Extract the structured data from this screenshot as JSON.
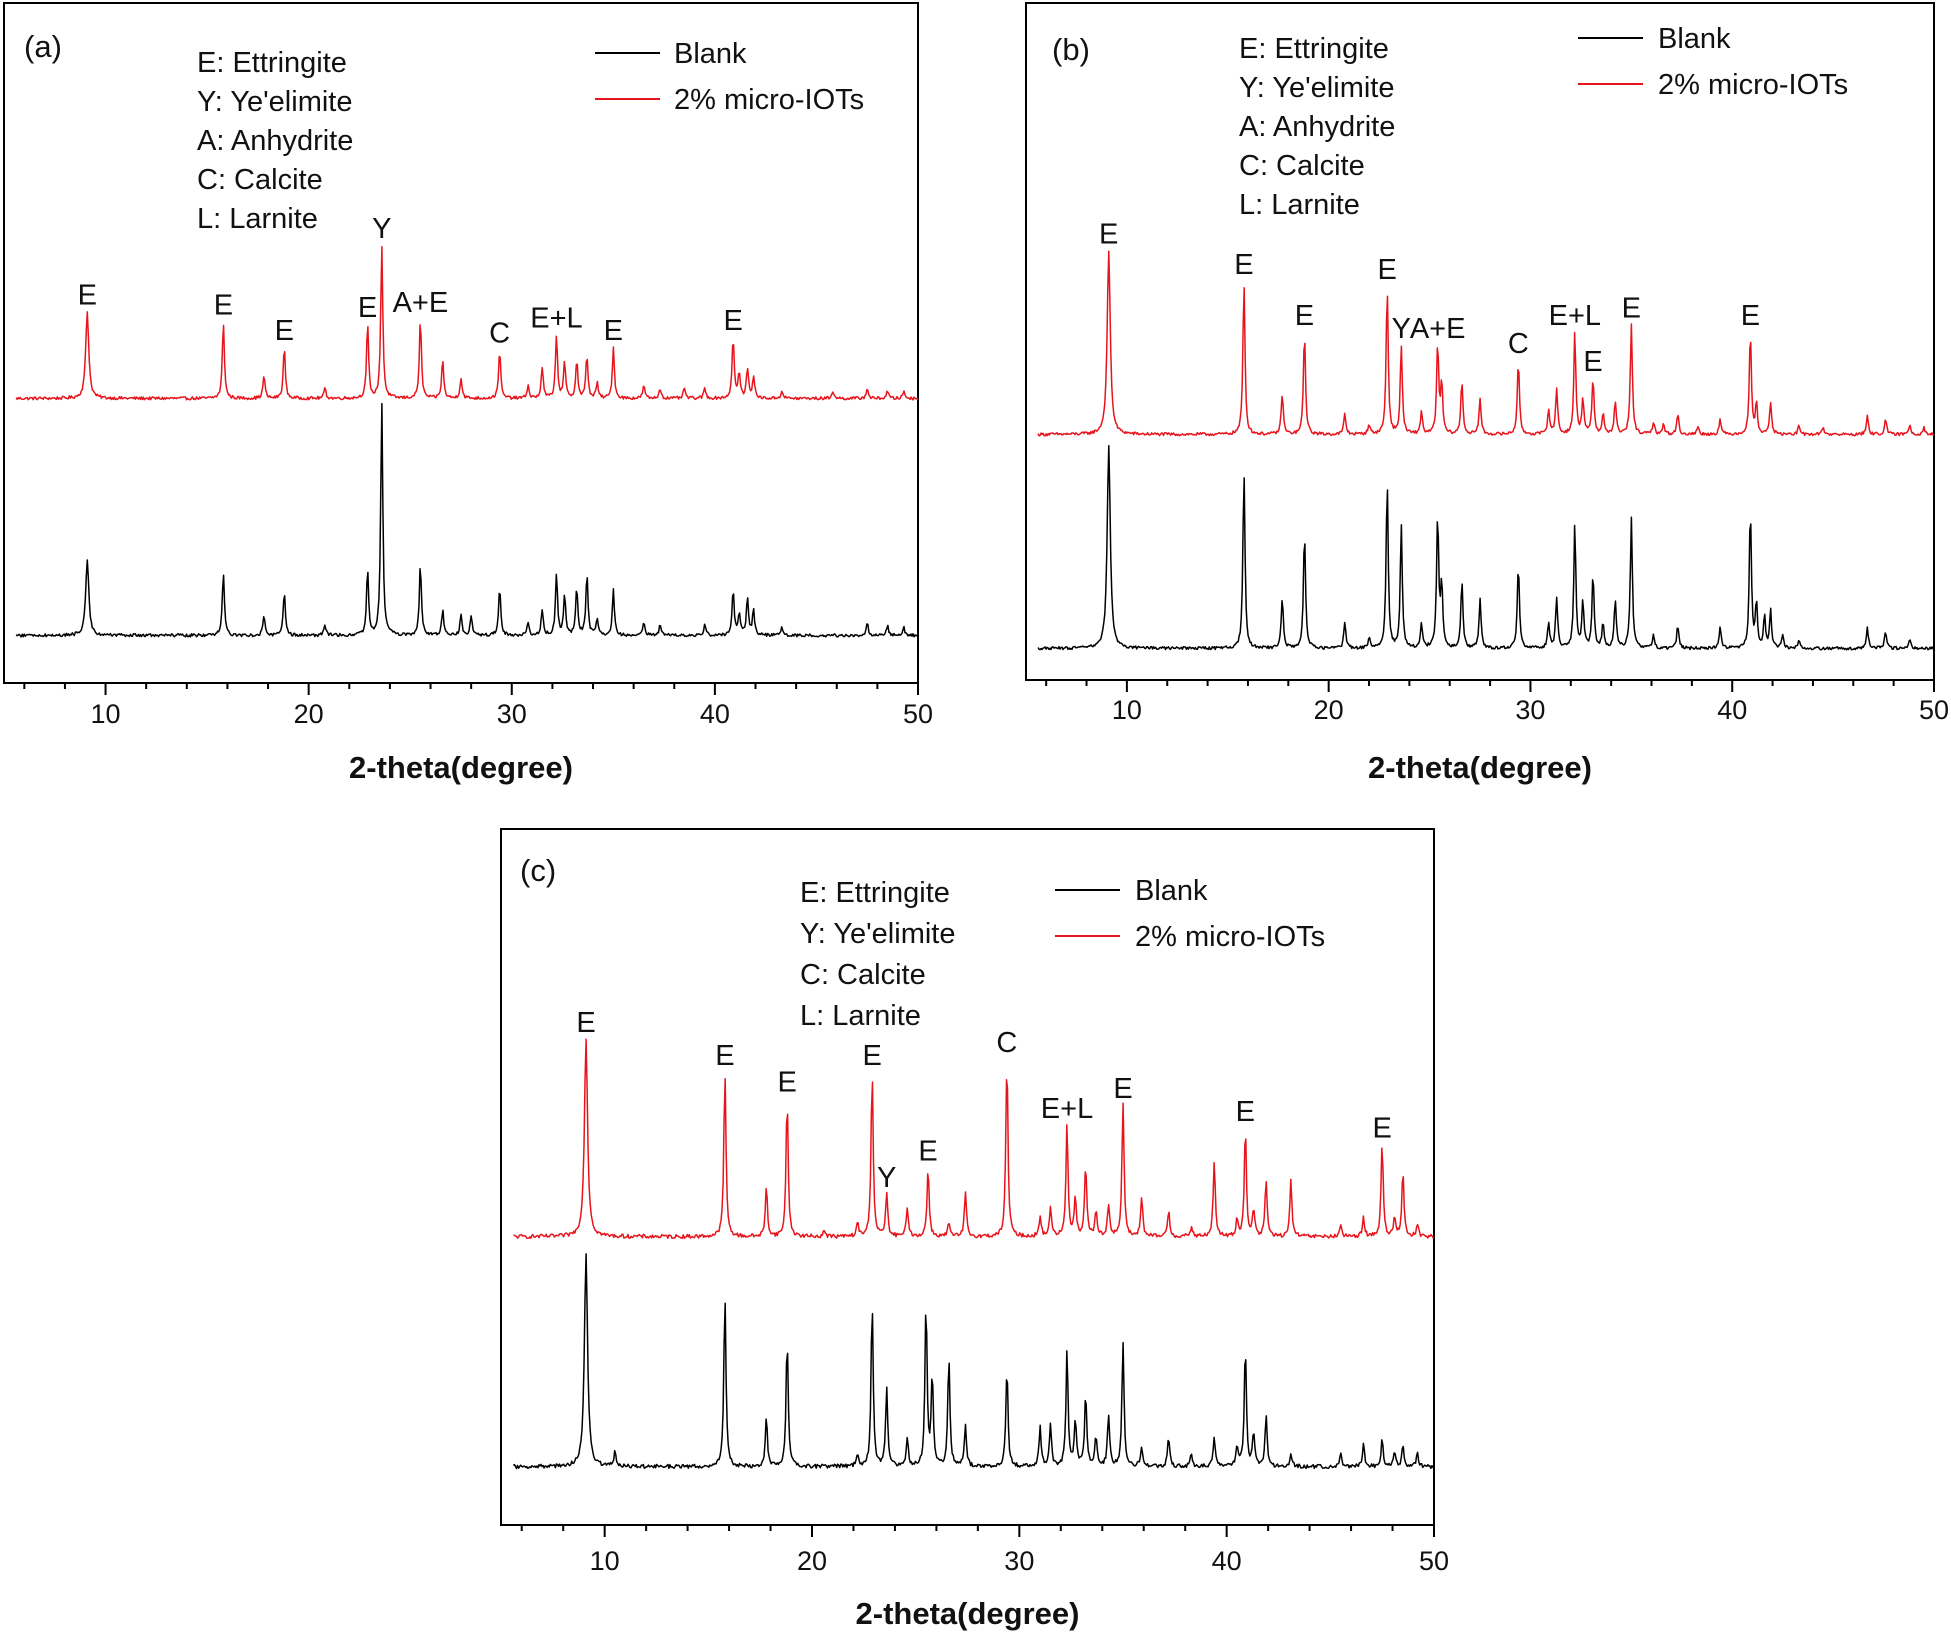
{
  "chart_data": [
    {
      "type": "line",
      "panel_label": "(a)",
      "xlabel": "2-theta(degree)",
      "xlim": [
        5,
        50
      ],
      "xticks": [
        "10",
        "20",
        "30",
        "40",
        "50"
      ],
      "phase_key": [
        "E: Ettringite",
        "Y: Ye'elimite",
        "A: Anhydrite",
        "C: Calcite",
        "L: Larnite"
      ],
      "legend": [
        {
          "name": "Blank",
          "color": "#000000"
        },
        {
          "name": "2% micro-IOTs",
          "color": "#e8141c"
        }
      ],
      "series": [
        {
          "name": "2% micro-IOTs",
          "color": "#e8141c",
          "peaks": [
            [
              9.1,
              0.34
            ],
            [
              15.8,
              0.3
            ],
            [
              17.8,
              0.09
            ],
            [
              18.8,
              0.2
            ],
            [
              20.8,
              0.04
            ],
            [
              22.9,
              0.29
            ],
            [
              23.6,
              0.6
            ],
            [
              25.5,
              0.31
            ],
            [
              26.6,
              0.15
            ],
            [
              27.5,
              0.08
            ],
            [
              29.4,
              0.19
            ],
            [
              30.8,
              0.05
            ],
            [
              31.5,
              0.12
            ],
            [
              32.2,
              0.25
            ],
            [
              32.6,
              0.14
            ],
            [
              33.2,
              0.15
            ],
            [
              33.7,
              0.17
            ],
            [
              34.2,
              0.06
            ],
            [
              35.0,
              0.2
            ],
            [
              36.5,
              0.05
            ],
            [
              37.3,
              0.04
            ],
            [
              38.5,
              0.04
            ],
            [
              39.5,
              0.04
            ],
            [
              40.9,
              0.24
            ],
            [
              41.2,
              0.1
            ],
            [
              41.6,
              0.12
            ],
            [
              41.9,
              0.09
            ],
            [
              43.3,
              0.03
            ],
            [
              45.8,
              0.03
            ],
            [
              47.5,
              0.04
            ],
            [
              48.5,
              0.03
            ],
            [
              49.3,
              0.03
            ]
          ]
        },
        {
          "name": "Blank",
          "color": "#000000",
          "peaks": [
            [
              9.1,
              0.3
            ],
            [
              15.8,
              0.25
            ],
            [
              17.8,
              0.08
            ],
            [
              18.8,
              0.17
            ],
            [
              20.8,
              0.04
            ],
            [
              22.9,
              0.26
            ],
            [
              23.6,
              0.92
            ],
            [
              25.5,
              0.28
            ],
            [
              26.6,
              0.1
            ],
            [
              27.5,
              0.08
            ],
            [
              28.0,
              0.08
            ],
            [
              29.4,
              0.19
            ],
            [
              30.8,
              0.05
            ],
            [
              31.5,
              0.1
            ],
            [
              32.2,
              0.24
            ],
            [
              32.6,
              0.16
            ],
            [
              33.2,
              0.19
            ],
            [
              33.7,
              0.24
            ],
            [
              34.2,
              0.07
            ],
            [
              35.0,
              0.18
            ],
            [
              36.5,
              0.05
            ],
            [
              37.3,
              0.04
            ],
            [
              39.5,
              0.04
            ],
            [
              40.9,
              0.18
            ],
            [
              41.2,
              0.09
            ],
            [
              41.6,
              0.15
            ],
            [
              41.9,
              0.1
            ],
            [
              43.3,
              0.03
            ],
            [
              47.5,
              0.05
            ],
            [
              48.5,
              0.04
            ],
            [
              49.3,
              0.03
            ]
          ]
        }
      ],
      "annotations": [
        {
          "label": "E",
          "x": 9.1,
          "y": 0.34
        },
        {
          "label": "E",
          "x": 15.8,
          "y": 0.3
        },
        {
          "label": "E",
          "x": 18.8,
          "y": 0.2
        },
        {
          "label": "E",
          "x": 22.9,
          "y": 0.29
        },
        {
          "label": "Y",
          "x": 23.6,
          "y": 0.6
        },
        {
          "label": "A+E",
          "x": 25.5,
          "y": 0.31
        },
        {
          "label": "C",
          "x": 29.4,
          "y": 0.19
        },
        {
          "label": "E+L",
          "x": 32.2,
          "y": 0.25
        },
        {
          "label": "E",
          "x": 35.0,
          "y": 0.2
        },
        {
          "label": "E",
          "x": 40.9,
          "y": 0.24
        }
      ]
    },
    {
      "type": "line",
      "panel_label": "(b)",
      "xlabel": "2-theta(degree)",
      "xlim": [
        5,
        50
      ],
      "xticks": [
        "10",
        "20",
        "30",
        "40",
        "50"
      ],
      "phase_key": [
        "E: Ettringite",
        "Y: Ye'elimite",
        "A: Anhydrite",
        "C: Calcite",
        "L: Larnite"
      ],
      "legend": [
        {
          "name": "Blank",
          "color": "#000000"
        },
        {
          "name": "2% micro-IOTs",
          "color": "#e8141c"
        }
      ],
      "series": [
        {
          "name": "2% micro-IOTs",
          "color": "#e8141c",
          "peaks": [
            [
              9.1,
              0.72
            ],
            [
              15.8,
              0.6
            ],
            [
              17.7,
              0.16
            ],
            [
              18.8,
              0.4
            ],
            [
              20.8,
              0.08
            ],
            [
              22.0,
              0.04
            ],
            [
              22.9,
              0.58
            ],
            [
              23.6,
              0.35
            ],
            [
              24.6,
              0.09
            ],
            [
              25.4,
              0.35
            ],
            [
              25.6,
              0.2
            ],
            [
              26.6,
              0.21
            ],
            [
              27.5,
              0.14
            ],
            [
              29.4,
              0.29
            ],
            [
              30.9,
              0.1
            ],
            [
              31.3,
              0.18
            ],
            [
              32.2,
              0.4
            ],
            [
              32.6,
              0.14
            ],
            [
              33.1,
              0.22
            ],
            [
              33.6,
              0.08
            ],
            [
              34.2,
              0.13
            ],
            [
              35.0,
              0.43
            ],
            [
              36.1,
              0.05
            ],
            [
              36.6,
              0.04
            ],
            [
              37.3,
              0.08
            ],
            [
              38.3,
              0.03
            ],
            [
              39.4,
              0.06
            ],
            [
              40.9,
              0.4
            ],
            [
              41.2,
              0.12
            ],
            [
              41.9,
              0.13
            ],
            [
              43.3,
              0.03
            ],
            [
              44.5,
              0.03
            ],
            [
              46.7,
              0.07
            ],
            [
              47.6,
              0.06
            ],
            [
              48.8,
              0.04
            ],
            [
              49.5,
              0.03
            ]
          ]
        },
        {
          "name": "Blank",
          "color": "#000000",
          "peaks": [
            [
              9.1,
              0.8
            ],
            [
              15.8,
              0.7
            ],
            [
              17.7,
              0.2
            ],
            [
              18.8,
              0.46
            ],
            [
              20.8,
              0.1
            ],
            [
              22.0,
              0.04
            ],
            [
              22.9,
              0.66
            ],
            [
              23.6,
              0.48
            ],
            [
              24.6,
              0.1
            ],
            [
              25.4,
              0.52
            ],
            [
              25.6,
              0.25
            ],
            [
              26.6,
              0.27
            ],
            [
              27.5,
              0.19
            ],
            [
              29.4,
              0.33
            ],
            [
              30.9,
              0.1
            ],
            [
              31.3,
              0.2
            ],
            [
              32.2,
              0.49
            ],
            [
              32.6,
              0.18
            ],
            [
              33.1,
              0.29
            ],
            [
              33.6,
              0.1
            ],
            [
              34.2,
              0.19
            ],
            [
              35.0,
              0.51
            ],
            [
              36.1,
              0.05
            ],
            [
              37.3,
              0.09
            ],
            [
              39.4,
              0.08
            ],
            [
              40.9,
              0.55
            ],
            [
              41.2,
              0.17
            ],
            [
              41.6,
              0.12
            ],
            [
              41.9,
              0.15
            ],
            [
              42.5,
              0.05
            ],
            [
              43.3,
              0.03
            ],
            [
              46.7,
              0.08
            ],
            [
              47.6,
              0.07
            ],
            [
              48.8,
              0.04
            ]
          ]
        }
      ],
      "annotations": [
        {
          "label": "E",
          "x": 9.1,
          "y": 0.72
        },
        {
          "label": "E",
          "x": 15.8,
          "y": 0.6
        },
        {
          "label": "E",
          "x": 18.8,
          "y": 0.4
        },
        {
          "label": "E",
          "x": 22.9,
          "y": 0.58
        },
        {
          "label": "Y",
          "x": 23.6,
          "y": 0.35
        },
        {
          "label": "A+E",
          "x": 25.4,
          "y": 0.35
        },
        {
          "label": "C",
          "x": 29.4,
          "y": 0.29
        },
        {
          "label": "E+L",
          "x": 32.2,
          "y": 0.4
        },
        {
          "label": "E",
          "x": 33.1,
          "y": 0.22
        },
        {
          "label": "E",
          "x": 35.0,
          "y": 0.43
        },
        {
          "label": "E",
          "x": 40.9,
          "y": 0.4
        }
      ]
    },
    {
      "type": "line",
      "panel_label": "(c)",
      "xlabel": "2-theta(degree)",
      "xlim": [
        5,
        50
      ],
      "xticks": [
        "10",
        "20",
        "30",
        "40",
        "50"
      ],
      "phase_key": [
        "E: Ettringite",
        "Y: Ye'elimite",
        "C: Calcite",
        "L: Larnite"
      ],
      "legend": [
        {
          "name": "Blank",
          "color": "#000000"
        },
        {
          "name": "2% micro-IOTs",
          "color": "#e8141c"
        }
      ],
      "series": [
        {
          "name": "2% micro-IOTs",
          "color": "#e8141c",
          "peaks": [
            [
              9.1,
              0.6
            ],
            [
              15.8,
              0.5
            ],
            [
              17.8,
              0.15
            ],
            [
              18.8,
              0.42
            ],
            [
              20.6,
              0.02
            ],
            [
              22.2,
              0.04
            ],
            [
              22.9,
              0.5
            ],
            [
              23.6,
              0.13
            ],
            [
              24.6,
              0.09
            ],
            [
              25.6,
              0.21
            ],
            [
              26.6,
              0.04
            ],
            [
              27.4,
              0.13
            ],
            [
              29.4,
              0.54
            ],
            [
              31.0,
              0.06
            ],
            [
              31.5,
              0.09
            ],
            [
              32.3,
              0.34
            ],
            [
              32.7,
              0.12
            ],
            [
              33.2,
              0.22
            ],
            [
              33.7,
              0.08
            ],
            [
              34.3,
              0.1
            ],
            [
              35.0,
              0.4
            ],
            [
              35.9,
              0.12
            ],
            [
              37.2,
              0.08
            ],
            [
              38.3,
              0.03
            ],
            [
              39.4,
              0.23
            ],
            [
              40.5,
              0.05
            ],
            [
              40.9,
              0.33
            ],
            [
              41.3,
              0.08
            ],
            [
              41.9,
              0.17
            ],
            [
              43.1,
              0.17
            ],
            [
              45.5,
              0.03
            ],
            [
              46.6,
              0.06
            ],
            [
              47.5,
              0.28
            ],
            [
              48.1,
              0.06
            ],
            [
              48.5,
              0.2
            ],
            [
              49.2,
              0.04
            ]
          ]
        },
        {
          "name": "Blank",
          "color": "#000000",
          "peaks": [
            [
              9.1,
              0.65
            ],
            [
              10.5,
              0.05
            ],
            [
              15.8,
              0.52
            ],
            [
              17.8,
              0.15
            ],
            [
              18.8,
              0.39
            ],
            [
              22.2,
              0.04
            ],
            [
              22.9,
              0.49
            ],
            [
              23.6,
              0.24
            ],
            [
              24.6,
              0.08
            ],
            [
              25.5,
              0.49
            ],
            [
              25.8,
              0.27
            ],
            [
              26.6,
              0.33
            ],
            [
              27.4,
              0.12
            ],
            [
              29.4,
              0.3
            ],
            [
              31.0,
              0.12
            ],
            [
              31.5,
              0.13
            ],
            [
              32.3,
              0.35
            ],
            [
              32.7,
              0.14
            ],
            [
              33.2,
              0.22
            ],
            [
              33.7,
              0.09
            ],
            [
              34.3,
              0.16
            ],
            [
              35.0,
              0.37
            ],
            [
              35.9,
              0.06
            ],
            [
              37.2,
              0.09
            ],
            [
              38.3,
              0.04
            ],
            [
              39.4,
              0.09
            ],
            [
              40.5,
              0.06
            ],
            [
              40.9,
              0.37
            ],
            [
              41.3,
              0.1
            ],
            [
              41.9,
              0.15
            ],
            [
              43.1,
              0.04
            ],
            [
              45.5,
              0.04
            ],
            [
              46.6,
              0.07
            ],
            [
              47.5,
              0.08
            ],
            [
              48.1,
              0.05
            ],
            [
              48.5,
              0.06
            ],
            [
              49.2,
              0.04
            ]
          ]
        }
      ],
      "annotations": [
        {
          "label": "E",
          "x": 9.1,
          "y": 0.6
        },
        {
          "label": "E",
          "x": 15.8,
          "y": 0.5
        },
        {
          "label": "E",
          "x": 18.8,
          "y": 0.42
        },
        {
          "label": "E",
          "x": 22.9,
          "y": 0.5
        },
        {
          "label": "Y",
          "x": 23.6,
          "y": 0.13
        },
        {
          "label": "E",
          "x": 25.6,
          "y": 0.21
        },
        {
          "label": "C",
          "x": 29.4,
          "y": 0.54
        },
        {
          "label": "E+L",
          "x": 32.3,
          "y": 0.34
        },
        {
          "label": "E",
          "x": 35.0,
          "y": 0.4
        },
        {
          "label": "E",
          "x": 40.9,
          "y": 0.33
        },
        {
          "label": "E",
          "x": 47.5,
          "y": 0.28
        }
      ]
    }
  ]
}
